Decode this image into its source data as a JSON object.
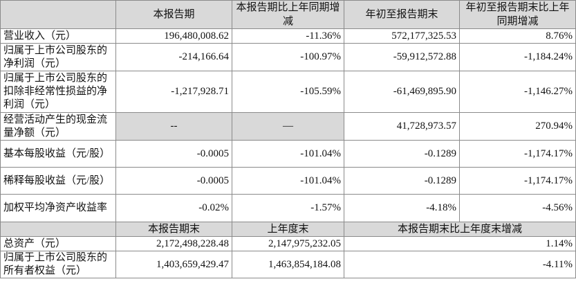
{
  "table": {
    "header": [
      "本报告期",
      "本报告期比上年同期增减",
      "年初至报告期末",
      "年初至报告期末比上年同期增减"
    ],
    "rows": [
      [
        "营业收入（元）",
        "196,480,008.62",
        "-11.36%",
        "572,177,325.53",
        "8.76%"
      ],
      [
        "归属于上市公司股东的净利润（元）",
        "-214,166.64",
        "-100.97%",
        "-59,912,572.88",
        "-1,184.24%"
      ],
      [
        "归属于上市公司股东的扣除非经常性损益的净利润（元）",
        "-1,217,928.71",
        "-105.59%",
        "-61,469,895.90",
        "-1,146.27%"
      ],
      [
        "经营活动产生的现金流量净额（元）",
        "--",
        "—",
        "41,728,973.57",
        "270.94%"
      ],
      [
        "基本每股收益（元/股）",
        "-0.0005",
        "-101.04%",
        "-0.1289",
        "-1,174.17%"
      ],
      [
        "稀释每股收益（元/股）",
        "-0.0005",
        "-101.04%",
        "-0.1289",
        "-1,174.17%"
      ],
      [
        "加权平均净资产收益率",
        "-0.02%",
        "-1.57%",
        "-4.18%",
        "-4.56%"
      ]
    ],
    "header2": [
      "本报告期末",
      "上年度末",
      "本报告期末比上年度末增减"
    ],
    "rows2": [
      [
        "总资产（元）",
        "2,172,498,228.48",
        "2,147,975,232.05",
        "1.14%"
      ],
      [
        "归属于上市公司股东的所有者权益（元）",
        "1,403,659,429.47",
        "1,463,854,184.08",
        "-4.11%"
      ]
    ]
  }
}
